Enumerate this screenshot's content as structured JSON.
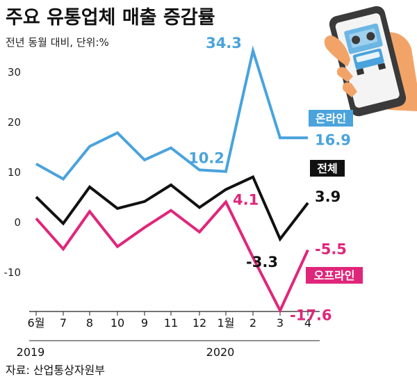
{
  "title": "주요 유통업체 매출 증감률",
  "subtitle": "전년 동월 대비, 단위:%",
  "source": "자료: 산업통상자원부",
  "colors": {
    "online": "#4aa3dc",
    "total": "#111111",
    "offline": "#e0267a"
  },
  "chart_data": {
    "type": "line",
    "categories": [
      "6월",
      "7",
      "8",
      "10",
      "9",
      "11",
      "12",
      "1월",
      "2",
      "3",
      "4"
    ],
    "year_labels": [
      {
        "index": 0,
        "label": "2019"
      },
      {
        "index": 7,
        "label": "2020"
      }
    ],
    "ylim": [
      -19,
      35
    ],
    "yticks": [
      30,
      20,
      10,
      0,
      -10
    ],
    "grid": false,
    "series": [
      {
        "name": "온라인",
        "key": "online",
        "values": [
          11.7,
          8.7,
          15.2,
          17.9,
          12.5,
          14.9,
          10.5,
          10.2,
          34.3,
          16.9,
          16.9
        ]
      },
      {
        "name": "전체",
        "key": "total",
        "values": [
          5.1,
          -0.2,
          7.1,
          2.8,
          4.2,
          7.5,
          3.0,
          6.6,
          9.1,
          -3.3,
          3.9
        ]
      },
      {
        "name": "오프라인",
        "key": "offline",
        "values": [
          0.8,
          -5.3,
          2.2,
          -4.8,
          -1.0,
          2.4,
          -1.9,
          4.1,
          -7.0,
          -17.6,
          -5.5
        ]
      }
    ],
    "data_labels": [
      {
        "series": "online",
        "index": 7,
        "text": "10.2"
      },
      {
        "series": "online",
        "index": 8,
        "text": "34.3"
      },
      {
        "series": "online",
        "index": 10,
        "text": "16.9"
      },
      {
        "series": "total",
        "index": 9,
        "text": "-3.3"
      },
      {
        "series": "total",
        "index": 10,
        "text": "3.9"
      },
      {
        "series": "offline",
        "index": 7,
        "text": "4.1"
      },
      {
        "series": "offline",
        "index": 9,
        "text": "-17.6"
      },
      {
        "series": "offline",
        "index": 10,
        "text": "-5.5"
      }
    ]
  },
  "decoration": {
    "icon": "phone-delivery-truck-icon"
  }
}
